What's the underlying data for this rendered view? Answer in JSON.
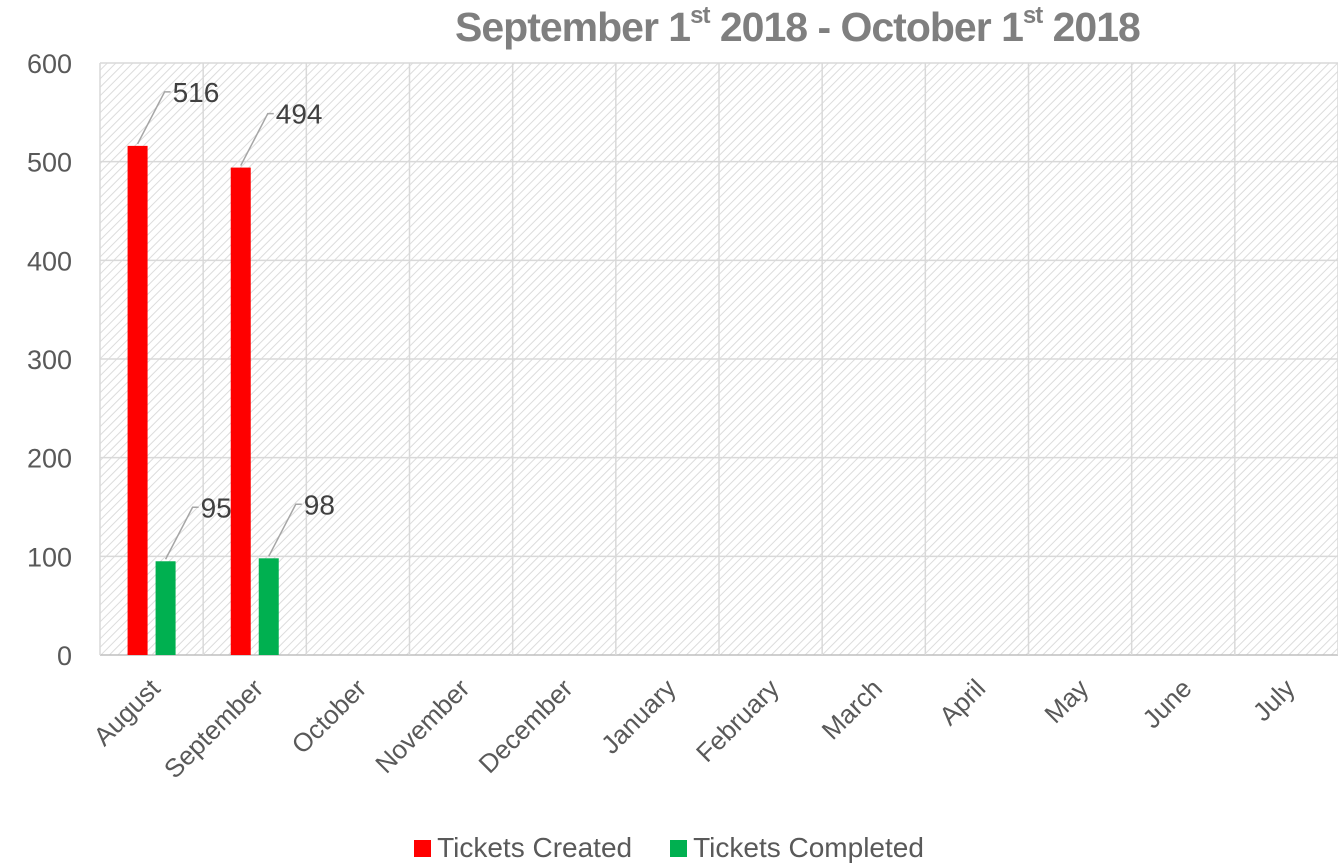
{
  "title": {
    "part1": "September 1",
    "sup1": "st",
    "part2": " 2018 - October 1",
    "sup2": "st",
    "part3": "  2018"
  },
  "chart_data": {
    "type": "bar",
    "categories": [
      "August",
      "September",
      "October",
      "November",
      "December",
      "January",
      "February",
      "March",
      "April",
      "May",
      "June",
      "July"
    ],
    "series": [
      {
        "name": "Tickets Created",
        "color": "#ff0000",
        "values": [
          516,
          494,
          null,
          null,
          null,
          null,
          null,
          null,
          null,
          null,
          null,
          null
        ]
      },
      {
        "name": "Tickets Completed",
        "color": "#00b050",
        "values": [
          95,
          98,
          null,
          null,
          null,
          null,
          null,
          null,
          null,
          null,
          null,
          null
        ]
      }
    ],
    "ylim": [
      0,
      600
    ],
    "yticks": [
      0,
      100,
      200,
      300,
      400,
      500,
      600
    ],
    "xlabel": "",
    "ylabel": "",
    "grid": true,
    "legend_position": "bottom"
  }
}
